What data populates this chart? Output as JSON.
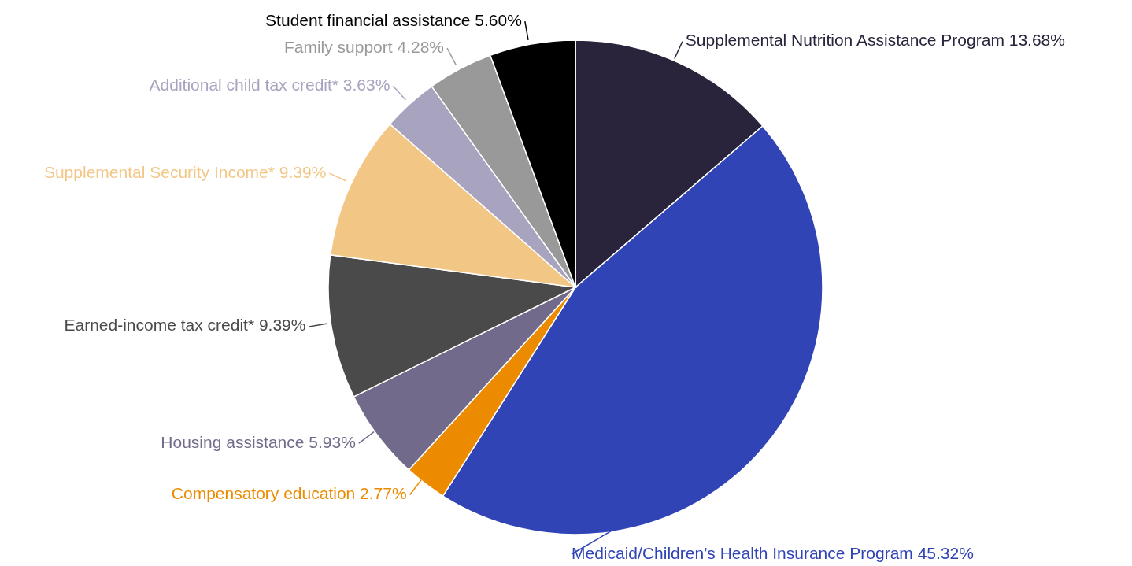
{
  "chart_data": {
    "type": "pie",
    "categories": [
      "Supplemental Nutrition Assistance Program",
      "Medicaid/Children’s Health Insurance Program",
      "Compensatory education",
      "Housing assistance",
      "Earned-income tax credit*",
      "Supplemental Security Income*",
      "Additional child tax credit*",
      "Family support",
      "Student financial assistance"
    ],
    "values": [
      13.68,
      45.32,
      2.77,
      5.93,
      9.39,
      9.39,
      3.63,
      4.28,
      5.6
    ],
    "value_labels": [
      "13.68%",
      "45.32%",
      "2.77%",
      "5.93%",
      "9.39%",
      "9.39%",
      "3.63%",
      "4.28%",
      "5.60%"
    ],
    "colors": [
      "#29233b",
      "#3044b5",
      "#ed8b00",
      "#726a8a",
      "#4a4a4a",
      "#f2c786",
      "#a8a4bf",
      "#999999",
      "#000000"
    ],
    "legend": false
  }
}
